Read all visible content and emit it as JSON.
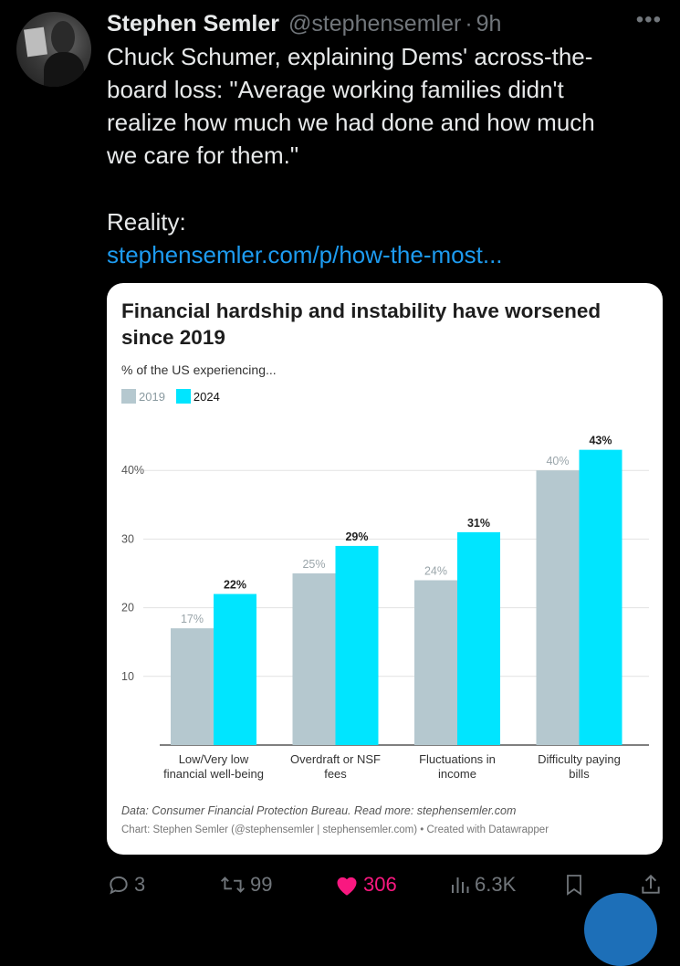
{
  "tweet": {
    "author_name": "Stephen Semler",
    "handle": "@stephensemler",
    "separator": "·",
    "time": "9h",
    "more_icon": "more-icon",
    "text_lines": [
      "Chuck Schumer, explaining Dems' across-the-",
      "board loss: \"Average working families didn't",
      "realize how much we had done and how much",
      "we care for them.\""
    ],
    "reality": "Reality:",
    "link": "stephensemler.com/p/how-the-most..."
  },
  "card": {
    "title_line1": "Financial hardship and instability have worsened",
    "title_line2": "since 2019",
    "subtitle": "% of the US experiencing...",
    "legend": [
      "2019",
      "2024"
    ],
    "note_data": "Data: Consumer Financial Protection Bureau. Read more: stephensemler.com",
    "note_chart": "Chart: Stephen Semler (@stephensemler | stephensemler.com) • Created with Datawrapper"
  },
  "chart_data": {
    "type": "bar",
    "categories": [
      [
        "Low/Very low",
        "financial well-being"
      ],
      [
        "Overdraft or NSF",
        "fees"
      ],
      [
        "Fluctuations in",
        "income"
      ],
      [
        "Difficulty paying",
        "bills"
      ]
    ],
    "series": [
      {
        "name": "2019",
        "values": [
          17,
          25,
          24,
          40
        ],
        "labels": [
          "17%",
          "25%",
          "24%",
          "40%"
        ],
        "color": "#b5c8cf"
      },
      {
        "name": "2024",
        "values": [
          22,
          29,
          31,
          43
        ],
        "labels": [
          "22%",
          "29%",
          "31%",
          "43%"
        ],
        "color": "#00e5ff"
      }
    ],
    "y_ticks": [
      {
        "value": 10,
        "label": "10"
      },
      {
        "value": 20,
        "label": "20"
      },
      {
        "value": 30,
        "label": "30"
      },
      {
        "value": 40,
        "label": "40%"
      }
    ],
    "ylim": [
      0,
      45
    ],
    "grid": true
  },
  "actions": {
    "replies": "3",
    "retweets": "99",
    "likes": "306",
    "views": "6.3K"
  },
  "colors": {
    "background": "#000000",
    "text": "#e7e9ea",
    "muted": "#71767b",
    "link": "#1d9bf0",
    "like": "#f91880"
  }
}
